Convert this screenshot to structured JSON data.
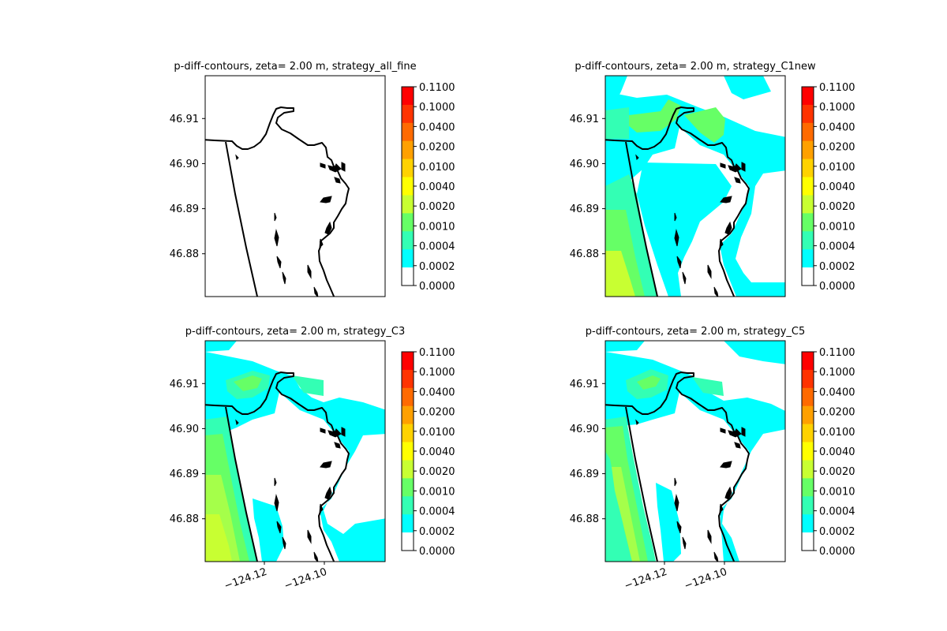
{
  "chart_data": [
    {
      "type": "heatmap",
      "title": "p-diff-contours, zeta= 2.00 m, strategy_all_fine",
      "yticks": [
        "46.91",
        "46.90",
        "46.89",
        "46.88"
      ],
      "ytick_values": [
        46.91,
        46.9,
        46.89,
        46.88
      ],
      "xticks": [],
      "xtick_values": [],
      "colorbar": {
        "levels": [
          "0.1100",
          "0.1000",
          "0.0400",
          "0.0200",
          "0.0100",
          "0.0040",
          "0.0020",
          "0.0010",
          "0.0004",
          "0.0002",
          "0.0000"
        ],
        "colors": [
          "#ff0000",
          "#ff3300",
          "#ff6a00",
          "#ffa000",
          "#ffd200",
          "#ffff00",
          "#c8ff32",
          "#66ff66",
          "#33ffb4",
          "#00ffff",
          "#ffffff"
        ]
      },
      "fill": "none"
    },
    {
      "type": "heatmap",
      "title": "p-diff-contours, zeta= 2.00 m, strategy_C1new",
      "yticks": [
        "46.91",
        "46.90",
        "46.89",
        "46.88"
      ],
      "ytick_values": [
        46.91,
        46.9,
        46.89,
        46.88
      ],
      "xticks": [],
      "xtick_values": [],
      "colorbar": {
        "levels": [
          "0.1100",
          "0.1000",
          "0.0400",
          "0.0200",
          "0.0100",
          "0.0040",
          "0.0020",
          "0.0010",
          "0.0004",
          "0.0002",
          "0.0000"
        ],
        "colors": [
          "#ff0000",
          "#ff3300",
          "#ff6a00",
          "#ffa000",
          "#ffd200",
          "#ffff00",
          "#c8ff32",
          "#66ff66",
          "#33ffb4",
          "#00ffff",
          "#ffffff"
        ]
      },
      "fill": "c1new"
    },
    {
      "type": "heatmap",
      "title": "p-diff-contours, zeta= 2.00 m, strategy_C3",
      "yticks": [
        "46.91",
        "46.90",
        "46.89",
        "46.88"
      ],
      "ytick_values": [
        46.91,
        46.9,
        46.89,
        46.88
      ],
      "xticks": [
        "−124.12",
        "−124.10"
      ],
      "xtick_values": [
        -124.12,
        -124.1
      ],
      "colorbar": {
        "levels": [
          "0.1100",
          "0.1000",
          "0.0400",
          "0.0200",
          "0.0100",
          "0.0040",
          "0.0020",
          "0.0010",
          "0.0004",
          "0.0002",
          "0.0000"
        ],
        "colors": [
          "#ff0000",
          "#ff3300",
          "#ff6a00",
          "#ffa000",
          "#ffd200",
          "#ffff00",
          "#c8ff32",
          "#66ff66",
          "#33ffb4",
          "#00ffff",
          "#ffffff"
        ]
      },
      "fill": "c3"
    },
    {
      "type": "heatmap",
      "title": "p-diff-contours, zeta= 2.00 m, strategy_C5",
      "yticks": [
        "46.91",
        "46.90",
        "46.89",
        "46.88"
      ],
      "ytick_values": [
        46.91,
        46.9,
        46.89,
        46.88
      ],
      "xticks": [
        "−124.12",
        "−124.10"
      ],
      "xtick_values": [
        -124.12,
        -124.1
      ],
      "colorbar": {
        "levels": [
          "0.1100",
          "0.1000",
          "0.0400",
          "0.0200",
          "0.0100",
          "0.0040",
          "0.0020",
          "0.0010",
          "0.0004",
          "0.0002",
          "0.0000"
        ],
        "colors": [
          "#ff0000",
          "#ff3300",
          "#ff6a00",
          "#ffa000",
          "#ffd200",
          "#ffff00",
          "#c8ff32",
          "#66ff66",
          "#33ffb4",
          "#00ffff",
          "#ffffff"
        ]
      },
      "fill": "c5"
    }
  ]
}
